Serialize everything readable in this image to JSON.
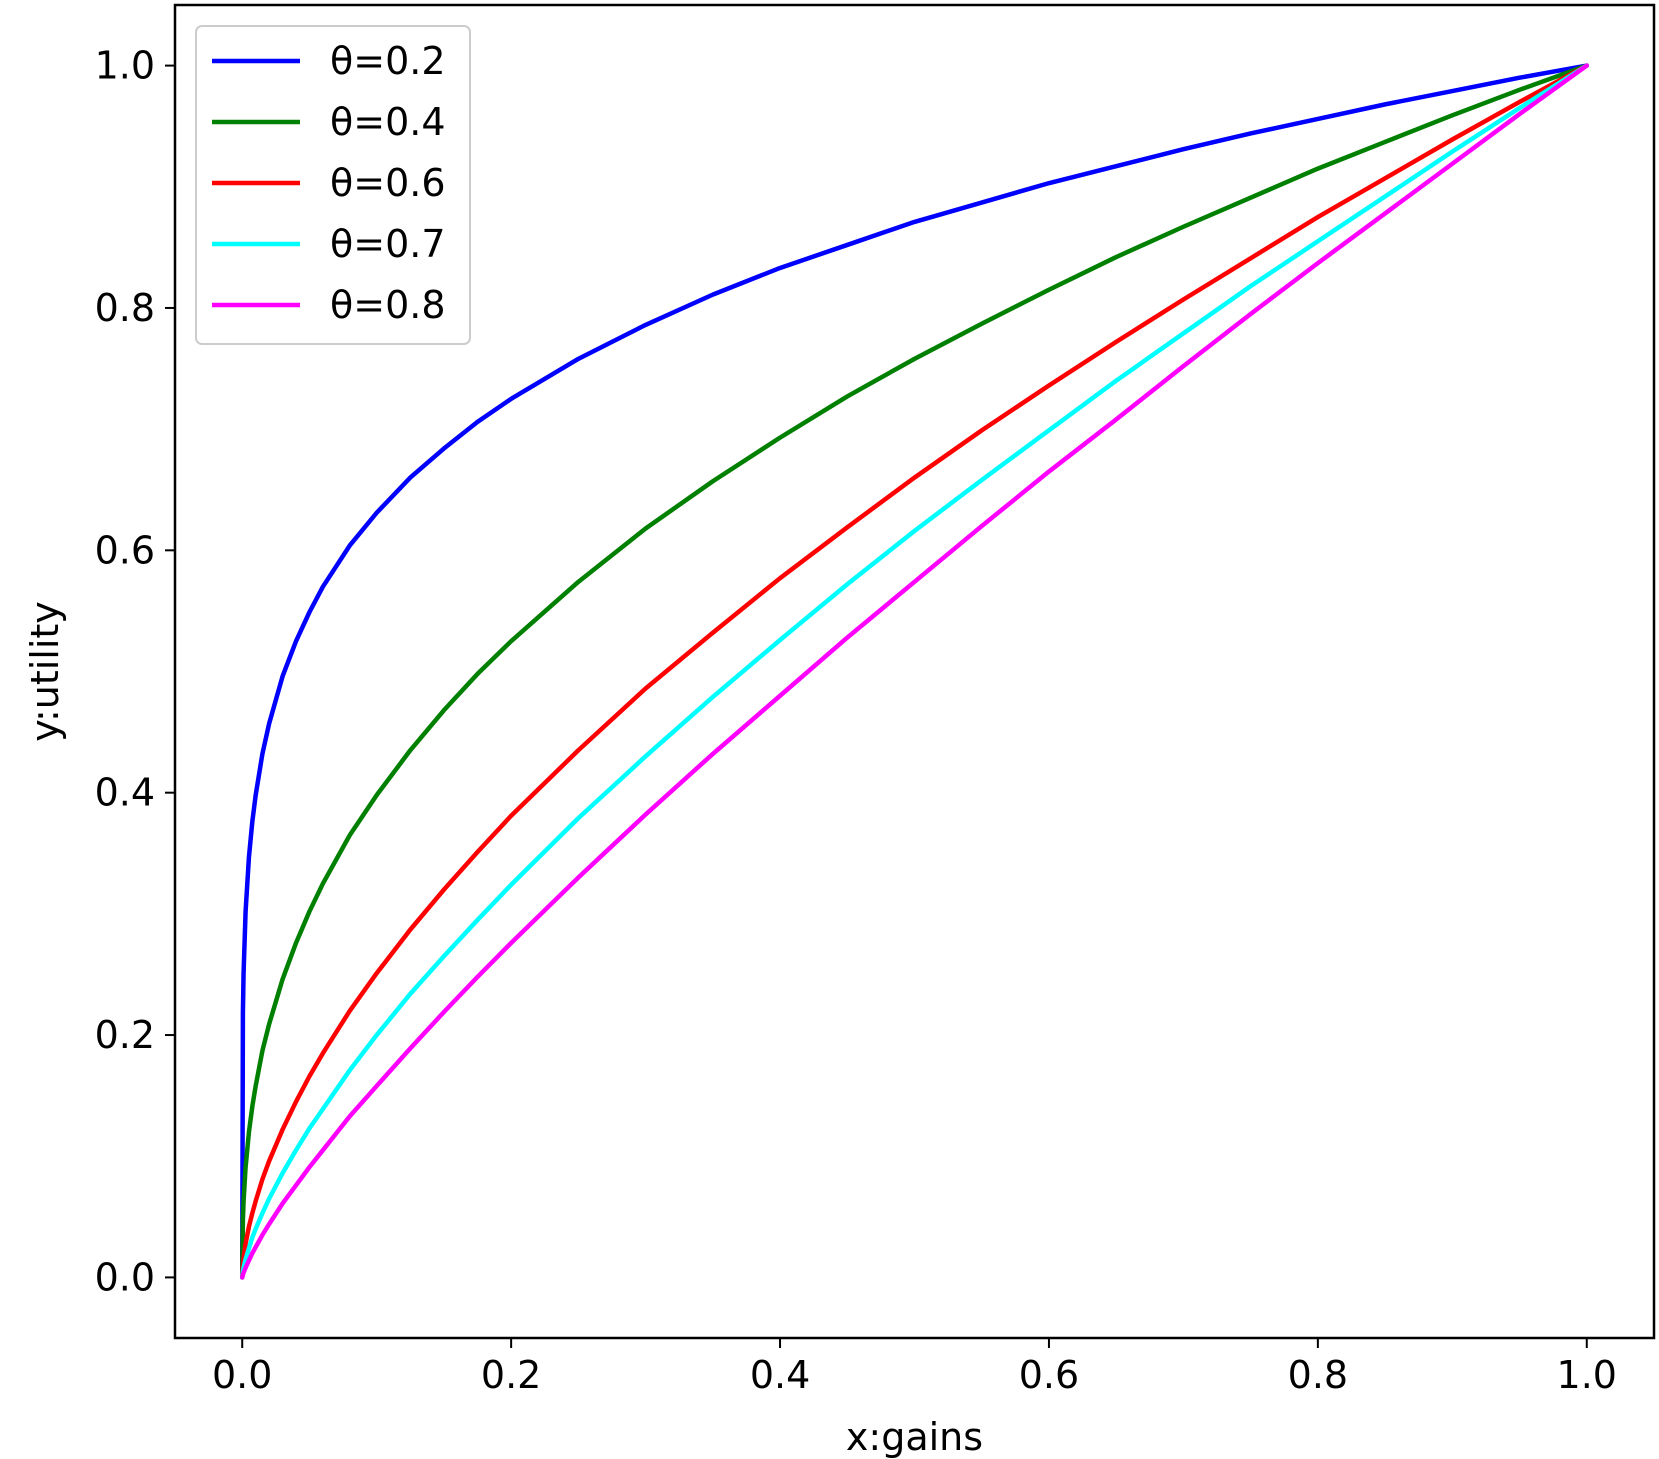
{
  "chart_data": {
    "type": "line",
    "title": "",
    "xlabel": "x:gains",
    "ylabel": "y:utility",
    "xlim": [
      -0.05,
      1.05
    ],
    "ylim": [
      -0.05,
      1.05
    ],
    "xticks": [
      "0.0",
      "0.2",
      "0.4",
      "0.6",
      "0.8",
      "1.0"
    ],
    "yticks": [
      "0.0",
      "0.2",
      "0.4",
      "0.6",
      "0.8",
      "1.0"
    ],
    "grid": false,
    "legend_position": "upper-left",
    "x": [
      0,
      0.0005,
      0.001,
      0.0025,
      0.005,
      0.0075,
      0.01,
      0.015,
      0.02,
      0.03,
      0.04,
      0.05,
      0.06,
      0.08,
      0.1,
      0.125,
      0.15,
      0.175,
      0.2,
      0.25,
      0.3,
      0.35,
      0.4,
      0.45,
      0.5,
      0.55,
      0.6,
      0.65,
      0.7,
      0.75,
      0.8,
      0.85,
      0.9,
      0.95,
      1.0
    ],
    "series": [
      {
        "name": "θ=0.2",
        "color": "#0000ff",
        "values": [
          0,
          0.218,
          0.251,
          0.302,
          0.347,
          0.376,
          0.398,
          0.432,
          0.457,
          0.496,
          0.525,
          0.549,
          0.57,
          0.604,
          0.631,
          0.66,
          0.684,
          0.706,
          0.725,
          0.758,
          0.786,
          0.811,
          0.833,
          0.852,
          0.871,
          0.887,
          0.903,
          0.917,
          0.931,
          0.944,
          0.956,
          0.968,
          0.979,
          0.99,
          1.0
        ]
      },
      {
        "name": "θ=0.4",
        "color": "#008000",
        "values": [
          0,
          0.048,
          0.063,
          0.091,
          0.12,
          0.141,
          0.158,
          0.187,
          0.209,
          0.246,
          0.276,
          0.302,
          0.325,
          0.365,
          0.398,
          0.435,
          0.468,
          0.498,
          0.525,
          0.574,
          0.618,
          0.657,
          0.693,
          0.727,
          0.758,
          0.787,
          0.815,
          0.842,
          0.867,
          0.891,
          0.915,
          0.937,
          0.959,
          0.98,
          1.0
        ]
      },
      {
        "name": "θ=0.6",
        "color": "#ff0000",
        "values": [
          0,
          0.01,
          0.016,
          0.028,
          0.042,
          0.053,
          0.063,
          0.081,
          0.096,
          0.122,
          0.145,
          0.166,
          0.185,
          0.22,
          0.251,
          0.287,
          0.32,
          0.351,
          0.381,
          0.435,
          0.486,
          0.532,
          0.577,
          0.619,
          0.66,
          0.699,
          0.736,
          0.772,
          0.807,
          0.841,
          0.875,
          0.907,
          0.939,
          0.97,
          1.0
        ]
      },
      {
        "name": "θ=0.7",
        "color": "#00ffff",
        "values": [
          0,
          0.005,
          0.008,
          0.015,
          0.024,
          0.033,
          0.04,
          0.053,
          0.065,
          0.086,
          0.105,
          0.123,
          0.139,
          0.171,
          0.2,
          0.234,
          0.265,
          0.295,
          0.324,
          0.379,
          0.43,
          0.479,
          0.526,
          0.572,
          0.616,
          0.658,
          0.699,
          0.74,
          0.779,
          0.818,
          0.855,
          0.892,
          0.929,
          0.965,
          1.0
        ]
      },
      {
        "name": "θ=0.8",
        "color": "#ff00ff",
        "values": [
          0,
          0.002,
          0.004,
          0.008,
          0.014,
          0.02,
          0.025,
          0.035,
          0.044,
          0.061,
          0.076,
          0.091,
          0.105,
          0.133,
          0.158,
          0.189,
          0.219,
          0.248,
          0.276,
          0.33,
          0.382,
          0.432,
          0.48,
          0.528,
          0.574,
          0.62,
          0.665,
          0.708,
          0.752,
          0.795,
          0.837,
          0.878,
          0.919,
          0.96,
          1.0
        ]
      }
    ]
  }
}
